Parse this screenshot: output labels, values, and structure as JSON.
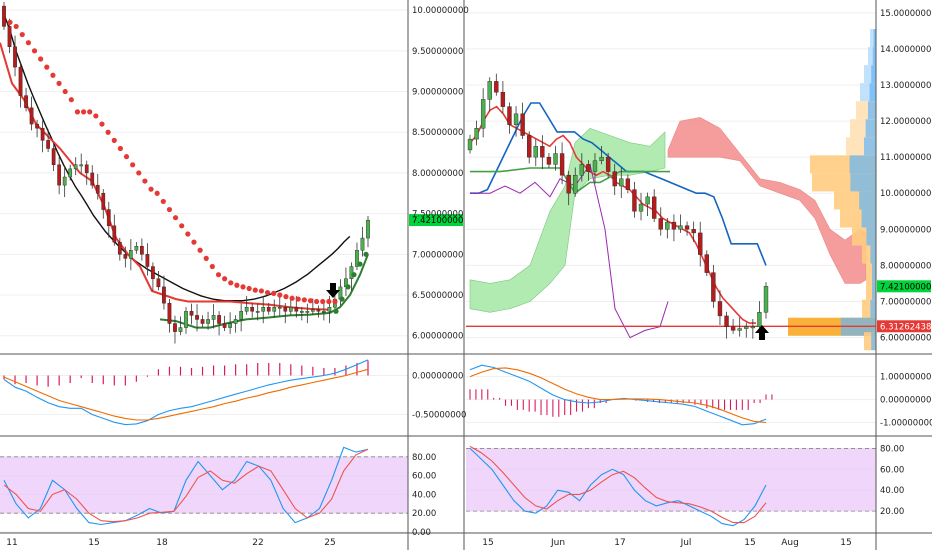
{
  "colors": {
    "bull": "#4caf50",
    "bear": "#b71c1c",
    "sar": "#e53935",
    "ma": "#111111",
    "supertrend_up": "#2e7d32",
    "supertrend_down": "#e53935",
    "tenkan": "#e53935",
    "kijun": "#1565c0",
    "chikou": "#9c27b0",
    "kumo_bull": "#a5e8a5",
    "kumo_bear": "#f48b8b",
    "macd_line": "#2196f3",
    "signal_line": "#ef6c00",
    "hist": "#d81b60",
    "k_line": "#2196f3",
    "d_line": "#ef5350",
    "stoch_band": "#e8c4f8",
    "price_tag": "#00d43a",
    "level_tag": "#e53935",
    "arrow": "#000000"
  },
  "left_panel": {
    "x_ticks": [
      "11",
      "15",
      "18",
      "22",
      "25"
    ],
    "price_axis": [
      "10.00000000",
      "9.50000000",
      "9.00000000",
      "8.50000000",
      "8.00000000",
      "7.50000000",
      "7.00000000",
      "6.50000000",
      "6.00000000"
    ],
    "price_tag": "7.42100000",
    "macd_axis": [
      "0.00000000",
      "-0.50000000"
    ],
    "stoch_axis": [
      "80.00",
      "60.00",
      "40.00",
      "20.00",
      "0.00"
    ]
  },
  "right_panel": {
    "x_ticks": [
      "15",
      "Jun",
      "17",
      "Jul",
      "15",
      "Aug",
      "15"
    ],
    "price_axis": [
      "15.00000000",
      "14.00000000",
      "13.00000000",
      "12.00000000",
      "11.00000000",
      "10.00000000",
      "9.00000000",
      "8.00000000",
      "7.00000000",
      "6.00000000"
    ],
    "price_tag": "7.42100000",
    "level_tag": "6.31262438",
    "macd_axis": [
      "1.00000000",
      "0.00000000",
      "-1.00000000"
    ],
    "stoch_axis": [
      "80.00",
      "60.00",
      "40.00",
      "20.00"
    ]
  },
  "chart_data": [
    {
      "type": "candlestick",
      "panel": "left-price",
      "ylim": [
        5.8,
        10.1
      ],
      "indicators": [
        "parabolic-sar",
        "moving-average",
        "supertrend"
      ],
      "close_series": [
        9.8,
        9.55,
        9.3,
        8.95,
        8.8,
        8.6,
        8.55,
        8.4,
        8.3,
        8.1,
        7.85,
        7.95,
        8.05,
        8.1,
        8.1,
        8.0,
        7.85,
        7.75,
        7.55,
        7.35,
        7.15,
        7.0,
        6.95,
        7.05,
        7.1,
        7.0,
        6.85,
        6.7,
        6.6,
        6.4,
        6.15,
        6.05,
        6.1,
        6.3,
        6.25,
        6.2,
        6.15,
        6.2,
        6.25,
        6.15,
        6.1,
        6.15,
        6.2,
        6.3,
        6.35,
        6.3,
        6.3,
        6.35,
        6.3,
        6.35,
        6.35,
        6.3,
        6.35,
        6.3,
        6.3,
        6.3,
        6.32,
        6.3,
        6.3,
        6.35,
        6.45,
        6.6,
        6.7,
        6.85,
        7.05,
        7.2,
        7.42
      ],
      "moving_average": [
        9.95,
        9.75,
        9.5,
        9.3,
        9.1,
        8.92,
        8.75,
        8.58,
        8.42,
        8.25,
        8.1,
        7.96,
        7.83,
        7.72,
        7.6,
        7.48,
        7.38,
        7.28,
        7.2,
        7.12,
        7.05,
        6.98,
        6.92,
        6.87,
        6.82,
        6.78,
        6.74,
        6.7,
        6.66,
        6.62,
        6.58,
        6.55,
        6.52,
        6.49,
        6.47,
        6.45,
        6.44,
        6.43,
        6.43,
        6.43,
        6.43,
        6.44,
        6.45,
        6.47,
        6.49,
        6.52,
        6.55,
        6.58,
        6.62,
        6.66,
        6.71,
        6.76,
        6.82,
        6.88,
        6.94,
        7.0,
        7.07,
        7.15,
        7.22
      ],
      "sar": [
        9.85,
        9.8,
        9.7,
        9.6,
        9.5,
        9.4,
        9.3,
        9.2,
        9.1,
        9.0,
        8.9,
        8.75,
        8.75,
        8.75,
        8.7,
        8.6,
        8.5,
        8.4,
        8.3,
        8.2,
        8.1,
        8.0,
        7.9,
        7.8,
        7.75,
        7.65,
        7.55,
        7.45,
        7.35,
        7.25,
        7.15,
        7.05,
        6.95,
        6.85,
        6.75,
        6.7,
        6.65,
        6.62,
        6.6,
        6.58,
        6.56,
        6.55,
        6.53,
        6.52,
        6.5,
        6.48,
        6.46,
        6.45,
        6.44,
        6.43,
        6.42,
        6.42,
        6.42,
        6.42
      ],
      "last_price": 7.421
    },
    {
      "type": "line",
      "panel": "left-macd",
      "ylim": [
        -0.75,
        0.25
      ],
      "series": [
        {
          "values": [
            -0.05,
            -0.15,
            -0.2,
            -0.28,
            -0.35,
            -0.4,
            -0.42,
            -0.42,
            -0.5,
            -0.55,
            -0.6,
            -0.63,
            -0.62,
            -0.58,
            -0.5,
            -0.45,
            -0.42,
            -0.4,
            -0.36,
            -0.32,
            -0.28,
            -0.24,
            -0.2,
            -0.16,
            -0.12,
            -0.09,
            -0.06,
            -0.04,
            -0.02,
            0.0,
            0.03,
            0.08,
            0.14,
            0.2
          ]
        },
        {
          "values": [
            -0.02,
            -0.08,
            -0.14,
            -0.2,
            -0.26,
            -0.32,
            -0.36,
            -0.4,
            -0.44,
            -0.48,
            -0.52,
            -0.55,
            -0.57,
            -0.57,
            -0.55,
            -0.52,
            -0.49,
            -0.46,
            -0.43,
            -0.4,
            -0.36,
            -0.33,
            -0.29,
            -0.26,
            -0.22,
            -0.19,
            -0.15,
            -0.12,
            -0.09,
            -0.06,
            -0.03,
            0.0,
            0.04,
            0.08
          ]
        }
      ]
    },
    {
      "type": "line",
      "panel": "left-stoch",
      "ylim": [
        0,
        100
      ],
      "band": [
        20,
        80
      ],
      "series": [
        {
          "values": [
            55,
            30,
            15,
            25,
            55,
            45,
            25,
            10,
            8,
            10,
            12,
            18,
            25,
            20,
            22,
            55,
            75,
            60,
            45,
            55,
            75,
            70,
            55,
            25,
            10,
            15,
            25,
            55,
            90,
            85,
            88
          ]
        },
        {
          "values": [
            50,
            40,
            25,
            22,
            40,
            45,
            35,
            20,
            12,
            11,
            12,
            15,
            20,
            21,
            22,
            38,
            58,
            65,
            55,
            52,
            62,
            70,
            65,
            45,
            25,
            15,
            20,
            35,
            65,
            82,
            88
          ]
        }
      ]
    },
    {
      "type": "candlestick",
      "panel": "right-price",
      "ylim": [
        5.6,
        15.3
      ],
      "indicators": [
        "ichimoku",
        "volume-profile"
      ],
      "close_series": [
        11.5,
        11.8,
        12.6,
        13.1,
        12.8,
        12.4,
        11.9,
        12.2,
        11.6,
        11.0,
        11.3,
        11.0,
        10.8,
        11.1,
        10.5,
        10.0,
        10.5,
        10.8,
        10.6,
        10.9,
        11.0,
        10.6,
        10.2,
        10.4,
        10.1,
        9.5,
        9.7,
        9.9,
        9.3,
        9.0,
        9.2,
        9.0,
        9.1,
        9.0,
        8.9,
        8.3,
        7.8,
        7.0,
        6.6,
        6.3,
        6.2,
        6.25,
        6.3,
        6.3,
        6.7,
        7.42
      ],
      "tenkan": [
        11.4,
        11.6,
        12.0,
        12.3,
        12.4,
        12.2,
        11.9,
        11.8,
        11.7,
        11.6,
        11.5,
        11.4,
        11.3,
        11.5,
        11.6,
        11.4,
        11.0,
        10.8,
        10.6,
        10.5,
        10.6,
        10.5,
        10.3,
        10.2,
        10.1,
        9.9,
        9.7,
        9.6,
        9.5,
        9.3,
        9.2,
        9.1,
        9.0,
        8.9,
        8.6,
        8.2,
        7.8,
        7.4,
        7.1,
        6.9,
        6.7,
        6.5,
        6.4,
        6.4
      ],
      "kijun": [
        10.0,
        10.0,
        10.1,
        10.6,
        11.1,
        11.6,
        12.1,
        12.5,
        12.5,
        12.1,
        11.7,
        11.7,
        11.7,
        11.5,
        11.4,
        11.2,
        11.0,
        10.8,
        10.6,
        10.6,
        10.6,
        10.5,
        10.4,
        10.3,
        10.2,
        10.1,
        10.0,
        10.0,
        9.9,
        9.3,
        8.6,
        8.6,
        8.6,
        8.6,
        8.0
      ],
      "levels": [
        6.31262438
      ],
      "last_price": 7.421
    },
    {
      "type": "line",
      "panel": "right-macd",
      "ylim": [
        -1.5,
        1.9
      ],
      "series": [
        {
          "values": [
            1.3,
            1.5,
            1.4,
            1.2,
            1.0,
            0.8,
            0.5,
            0.2,
            0.0,
            -0.1,
            -0.15,
            -0.1,
            0.0,
            0.05,
            0.0,
            -0.05,
            -0.1,
            -0.15,
            -0.2,
            -0.3,
            -0.5,
            -0.7,
            -0.9,
            -1.1,
            -1.05,
            -0.85
          ]
        },
        {
          "values": [
            1.0,
            1.2,
            1.35,
            1.38,
            1.3,
            1.15,
            0.95,
            0.7,
            0.45,
            0.25,
            0.1,
            0.0,
            0.0,
            0.02,
            0.03,
            0.02,
            0.0,
            -0.05,
            -0.1,
            -0.15,
            -0.25,
            -0.4,
            -0.6,
            -0.8,
            -0.95,
            -1.0
          ]
        }
      ]
    },
    {
      "type": "line",
      "panel": "right-stoch",
      "ylim": [
        0,
        90
      ],
      "band": [
        20,
        80
      ],
      "series": [
        {
          "values": [
            80,
            70,
            60,
            45,
            30,
            20,
            18,
            25,
            40,
            38,
            30,
            45,
            55,
            60,
            55,
            40,
            30,
            25,
            28,
            30,
            25,
            20,
            15,
            8,
            6,
            12,
            25,
            45
          ]
        },
        {
          "values": [
            82,
            76,
            68,
            57,
            45,
            33,
            25,
            22,
            30,
            36,
            36,
            40,
            48,
            55,
            58,
            52,
            42,
            33,
            29,
            28,
            27,
            24,
            20,
            14,
            9,
            9,
            15,
            28
          ]
        }
      ]
    }
  ]
}
